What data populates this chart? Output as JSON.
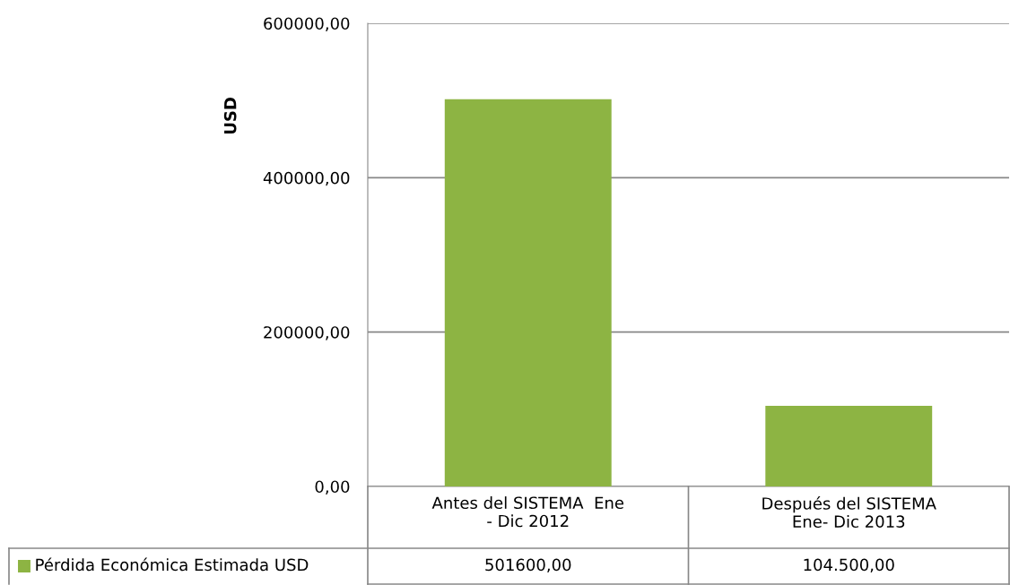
{
  "chart_data": {
    "type": "bar",
    "ylabel": "USD",
    "categories": [
      "Antes del SISTEMA  Ene\n- Dic 2012",
      "Después del SISTEMA\nEne- Dic 2013"
    ],
    "series": [
      {
        "name": "Pérdida Económica Estimada USD",
        "color": "#8db443",
        "values": [
          501600,
          104500
        ],
        "value_labels": [
          "501600,00",
          "104.500,00"
        ]
      }
    ],
    "ylim": [
      0,
      600000
    ],
    "yticks": [
      {
        "value": 0,
        "label": "0,00"
      },
      {
        "value": 200000,
        "label": "200000,00"
      },
      {
        "value": 400000,
        "label": "400000,00"
      },
      {
        "value": 600000,
        "label": "600000,00"
      }
    ],
    "grid": "y",
    "legend": "bottom left"
  }
}
